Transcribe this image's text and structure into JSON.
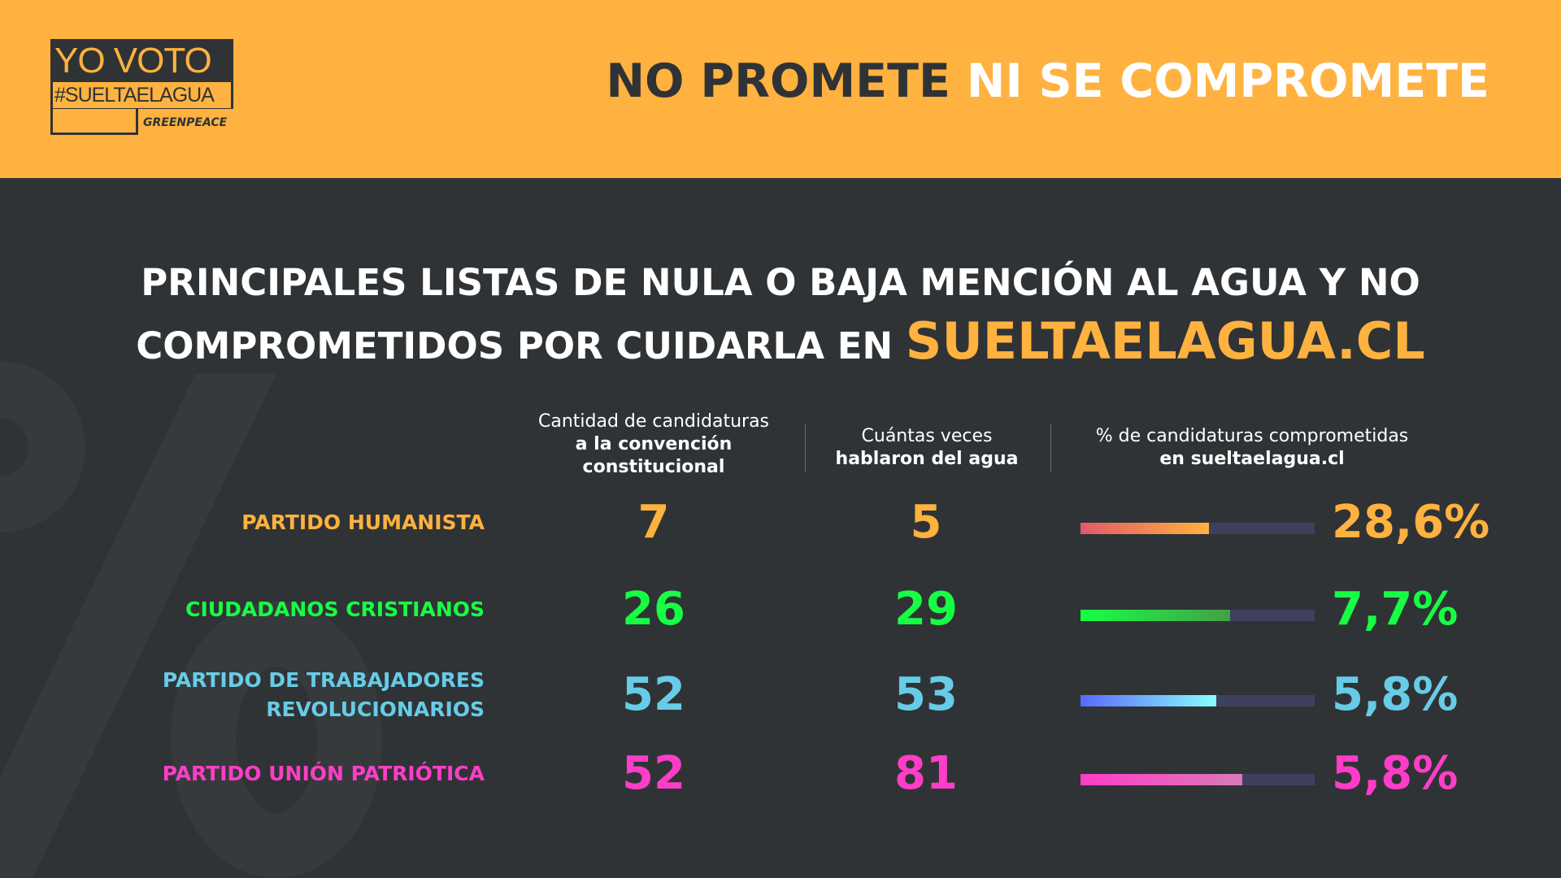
{
  "logo": {
    "line1": "YO VOTO",
    "line2": "#SUELTAELAGUA",
    "brand": "GREENPEACE"
  },
  "header": {
    "title_part1": "NO PROMETE",
    "title_part2": "NI SE COMPROMETE"
  },
  "watermark": "%",
  "main": {
    "title_line1": "PRINCIPALES LISTAS DE NULA O BAJA MENCIÓN AL AGUA Y NO",
    "title_line2": "COMPROMETIDOS POR CUIDARLA EN",
    "title_accent": "SUELTAELAGUA.CL"
  },
  "columns": [
    {
      "light": "Cantidad de candidaturas",
      "bold": "a la convención constitucional"
    },
    {
      "light": "Cuántas veces",
      "bold": "hablaron del agua"
    },
    {
      "light": "% de candidaturas comprometidas",
      "bold": "en sueltaelagua.cl"
    }
  ],
  "rows": [
    {
      "label": "PARTIDO HUMANISTA",
      "candidaturas": "7",
      "veces": "5",
      "pct": "28,6%",
      "color": "#FFB23F",
      "bar_fill": 0.55,
      "bar_from": "#e05a6a",
      "bar_to": "#FFB23F"
    },
    {
      "label": "CIUDADANOS CRISTIANOS",
      "candidaturas": "26",
      "veces": "29",
      "pct": "7,7%",
      "color": "#17FF45",
      "bar_fill": 0.64,
      "bar_from": "#17FF45",
      "bar_to": "#43a047"
    },
    {
      "label": "PARTIDO DE TRABAJADORES REVOLUCIONARIOS",
      "candidaturas": "52",
      "veces": "53",
      "pct": "5,8%",
      "color": "#66CCE8",
      "bar_fill": 0.58,
      "bar_from": "#5a6aff",
      "bar_to": "#88ffff"
    },
    {
      "label": "PARTIDO UNIÓN PATRIÓTICA",
      "candidaturas": "52",
      "veces": "81",
      "pct": "5,8%",
      "color": "#FF3DC8",
      "bar_fill": 0.69,
      "bar_from": "#ff3dc8",
      "bar_to": "#d87ab8"
    }
  ]
}
